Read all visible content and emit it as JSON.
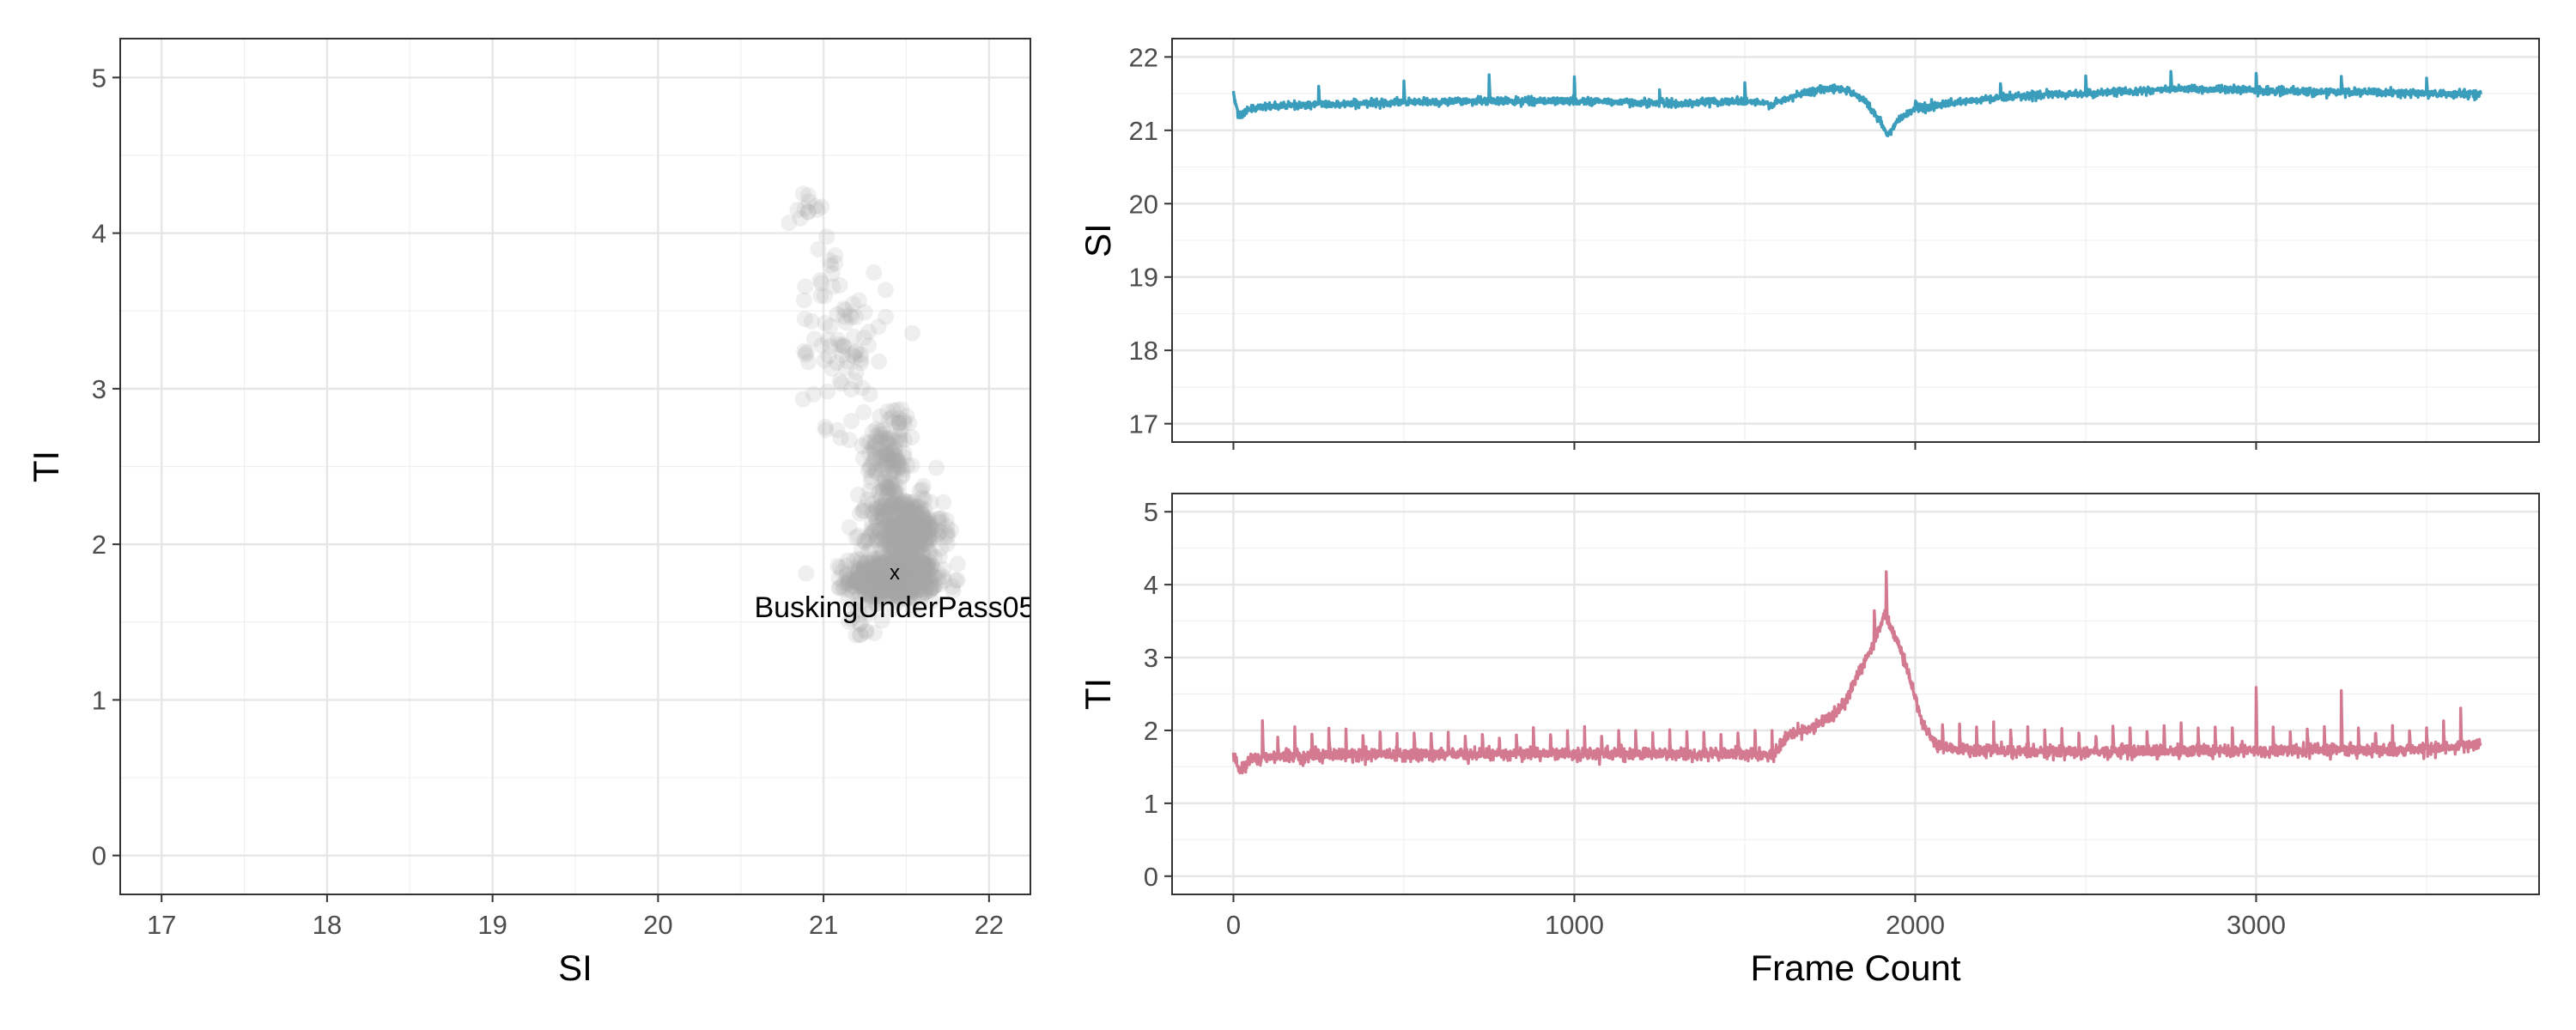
{
  "chart_data": [
    {
      "type": "scatter",
      "title": "",
      "xlabel": "SI",
      "ylabel": "TI",
      "xlim": [
        16.75,
        22.25
      ],
      "ylim": [
        -0.25,
        5.25
      ],
      "xticks": [
        17,
        18,
        19,
        20,
        21,
        22
      ],
      "yticks": [
        0,
        1,
        2,
        3,
        4,
        5
      ],
      "grid": true,
      "point_color": "#a6a6a6",
      "point_opacity": 0.18,
      "annotation": {
        "x": 21.43,
        "y": 1.82,
        "marker": "x",
        "label": "BuskingUnderPass05"
      },
      "clusters": [
        {
          "x": 21.42,
          "y": 1.78,
          "sx": 0.13,
          "sy": 0.07,
          "n": 650
        },
        {
          "x": 21.5,
          "y": 2.08,
          "sx": 0.11,
          "sy": 0.12,
          "n": 360
        },
        {
          "x": 21.38,
          "y": 2.35,
          "sx": 0.07,
          "sy": 0.18,
          "n": 90
        },
        {
          "x": 21.42,
          "y": 2.65,
          "sx": 0.07,
          "sy": 0.13,
          "n": 80
        },
        {
          "x": 21.12,
          "y": 3.25,
          "sx": 0.13,
          "sy": 0.25,
          "n": 70
        },
        {
          "x": 21.0,
          "y": 3.85,
          "sx": 0.06,
          "sy": 0.25,
          "n": 16
        },
        {
          "x": 20.92,
          "y": 4.15,
          "sx": 0.04,
          "sy": 0.04,
          "n": 10
        },
        {
          "x": 21.25,
          "y": 1.5,
          "sx": 0.06,
          "sy": 0.07,
          "n": 14
        }
      ]
    },
    {
      "type": "line",
      "title": "",
      "xlabel": "",
      "ylabel": "SI",
      "color": "#3a9dbb",
      "xlim": [
        -180,
        3830
      ],
      "ylim": [
        16.75,
        22.25
      ],
      "xticks": [
        0,
        1000,
        2000,
        3000
      ],
      "yticks": [
        17,
        18,
        19,
        20,
        21,
        22
      ],
      "grid": true,
      "n_frames": 3660,
      "baseline": [
        [
          0,
          21.5
        ],
        [
          15,
          21.2
        ],
        [
          40,
          21.28
        ],
        [
          120,
          21.33
        ],
        [
          300,
          21.36
        ],
        [
          500,
          21.38
        ],
        [
          700,
          21.4
        ],
        [
          1000,
          21.4
        ],
        [
          1200,
          21.38
        ],
        [
          1300,
          21.36
        ],
        [
          1400,
          21.39
        ],
        [
          1500,
          21.4
        ],
        [
          1580,
          21.35
        ],
        [
          1620,
          21.42
        ],
        [
          1680,
          21.52
        ],
        [
          1750,
          21.58
        ],
        [
          1800,
          21.55
        ],
        [
          1850,
          21.42
        ],
        [
          1900,
          21.1
        ],
        [
          1920,
          20.92
        ],
        [
          1950,
          21.15
        ],
        [
          2000,
          21.3
        ],
        [
          2100,
          21.36
        ],
        [
          2200,
          21.42
        ],
        [
          2300,
          21.47
        ],
        [
          2500,
          21.5
        ],
        [
          2700,
          21.55
        ],
        [
          2900,
          21.56
        ],
        [
          3100,
          21.53
        ],
        [
          3300,
          21.52
        ],
        [
          3500,
          21.5
        ],
        [
          3660,
          21.5
        ]
      ],
      "spikes": [
        {
          "x": 250,
          "h": 0.25
        },
        {
          "x": 500,
          "h": 0.25
        },
        {
          "x": 750,
          "h": 0.35
        },
        {
          "x": 1000,
          "h": 0.3
        },
        {
          "x": 1250,
          "h": 0.18
        },
        {
          "x": 1500,
          "h": 0.25
        },
        {
          "x": 2000,
          "h": 0.12
        },
        {
          "x": 2250,
          "h": 0.2
        },
        {
          "x": 2500,
          "h": 0.25
        },
        {
          "x": 2750,
          "h": 0.25
        },
        {
          "x": 3000,
          "h": 0.25
        },
        {
          "x": 3250,
          "h": 0.18
        },
        {
          "x": 3500,
          "h": 0.2
        }
      ],
      "noise": 0.025
    },
    {
      "type": "line",
      "title": "",
      "xlabel": "Frame Count",
      "ylabel": "TI",
      "color": "#d37a91",
      "xlim": [
        -180,
        3830
      ],
      "ylim": [
        -0.25,
        5.25
      ],
      "xticks": [
        0,
        1000,
        2000,
        3000
      ],
      "yticks": [
        0,
        1,
        2,
        3,
        4,
        5
      ],
      "grid": true,
      "n_frames": 3660,
      "baseline": [
        [
          0,
          1.68
        ],
        [
          20,
          1.42
        ],
        [
          50,
          1.62
        ],
        [
          300,
          1.67
        ],
        [
          1000,
          1.68
        ],
        [
          1590,
          1.67
        ],
        [
          1620,
          1.9
        ],
        [
          1700,
          2.05
        ],
        [
          1760,
          2.2
        ],
        [
          1800,
          2.45
        ],
        [
          1840,
          2.85
        ],
        [
          1880,
          3.2
        ],
        [
          1910,
          3.6
        ],
        [
          1940,
          3.3
        ],
        [
          1980,
          2.8
        ],
        [
          2020,
          2.1
        ],
        [
          2060,
          1.82
        ],
        [
          2100,
          1.75
        ],
        [
          2300,
          1.71
        ],
        [
          3000,
          1.72
        ],
        [
          3500,
          1.74
        ],
        [
          3660,
          1.82
        ]
      ],
      "spikes": [
        {
          "x": 85,
          "h": 0.45
        },
        {
          "x": 130,
          "h": 0.3
        },
        {
          "x": 180,
          "h": 0.3
        },
        {
          "x": 230,
          "h": 0.3
        },
        {
          "x": 280,
          "h": 0.3
        },
        {
          "x": 330,
          "h": 0.3
        },
        {
          "x": 380,
          "h": 0.3
        },
        {
          "x": 430,
          "h": 0.3
        },
        {
          "x": 480,
          "h": 0.3
        },
        {
          "x": 530,
          "h": 0.3
        },
        {
          "x": 580,
          "h": 0.3
        },
        {
          "x": 630,
          "h": 0.3
        },
        {
          "x": 680,
          "h": 0.3
        },
        {
          "x": 730,
          "h": 0.3
        },
        {
          "x": 780,
          "h": 0.3
        },
        {
          "x": 830,
          "h": 0.3
        },
        {
          "x": 880,
          "h": 0.3
        },
        {
          "x": 930,
          "h": 0.3
        },
        {
          "x": 980,
          "h": 0.3
        },
        {
          "x": 1030,
          "h": 0.3
        },
        {
          "x": 1080,
          "h": 0.3
        },
        {
          "x": 1130,
          "h": 0.3
        },
        {
          "x": 1180,
          "h": 0.3
        },
        {
          "x": 1230,
          "h": 0.3
        },
        {
          "x": 1280,
          "h": 0.3
        },
        {
          "x": 1330,
          "h": 0.3
        },
        {
          "x": 1380,
          "h": 0.3
        },
        {
          "x": 1430,
          "h": 0.3
        },
        {
          "x": 1480,
          "h": 0.3
        },
        {
          "x": 1530,
          "h": 0.3
        },
        {
          "x": 1580,
          "h": 0.3
        },
        {
          "x": 1880,
          "h": 0.5
        },
        {
          "x": 1915,
          "h": 0.6
        },
        {
          "x": 2080,
          "h": 0.3
        },
        {
          "x": 2130,
          "h": 0.3
        },
        {
          "x": 2180,
          "h": 0.3
        },
        {
          "x": 2230,
          "h": 0.3
        },
        {
          "x": 2280,
          "h": 0.3
        },
        {
          "x": 2330,
          "h": 0.3
        },
        {
          "x": 2380,
          "h": 0.3
        },
        {
          "x": 2430,
          "h": 0.3
        },
        {
          "x": 2480,
          "h": 0.3
        },
        {
          "x": 2530,
          "h": 0.3
        },
        {
          "x": 2580,
          "h": 0.3
        },
        {
          "x": 2630,
          "h": 0.3
        },
        {
          "x": 2680,
          "h": 0.3
        },
        {
          "x": 2730,
          "h": 0.3
        },
        {
          "x": 2780,
          "h": 0.3
        },
        {
          "x": 2830,
          "h": 0.3
        },
        {
          "x": 2880,
          "h": 0.3
        },
        {
          "x": 2930,
          "h": 0.3
        },
        {
          "x": 3000,
          "h": 0.85
        },
        {
          "x": 3050,
          "h": 0.3
        },
        {
          "x": 3100,
          "h": 0.3
        },
        {
          "x": 3150,
          "h": 0.3
        },
        {
          "x": 3200,
          "h": 0.3
        },
        {
          "x": 3250,
          "h": 0.8
        },
        {
          "x": 3300,
          "h": 0.3
        },
        {
          "x": 3350,
          "h": 0.3
        },
        {
          "x": 3400,
          "h": 0.3
        },
        {
          "x": 3450,
          "h": 0.3
        },
        {
          "x": 3500,
          "h": 0.3
        },
        {
          "x": 3550,
          "h": 0.3
        },
        {
          "x": 3600,
          "h": 0.5
        }
      ],
      "noise": 0.04
    }
  ]
}
